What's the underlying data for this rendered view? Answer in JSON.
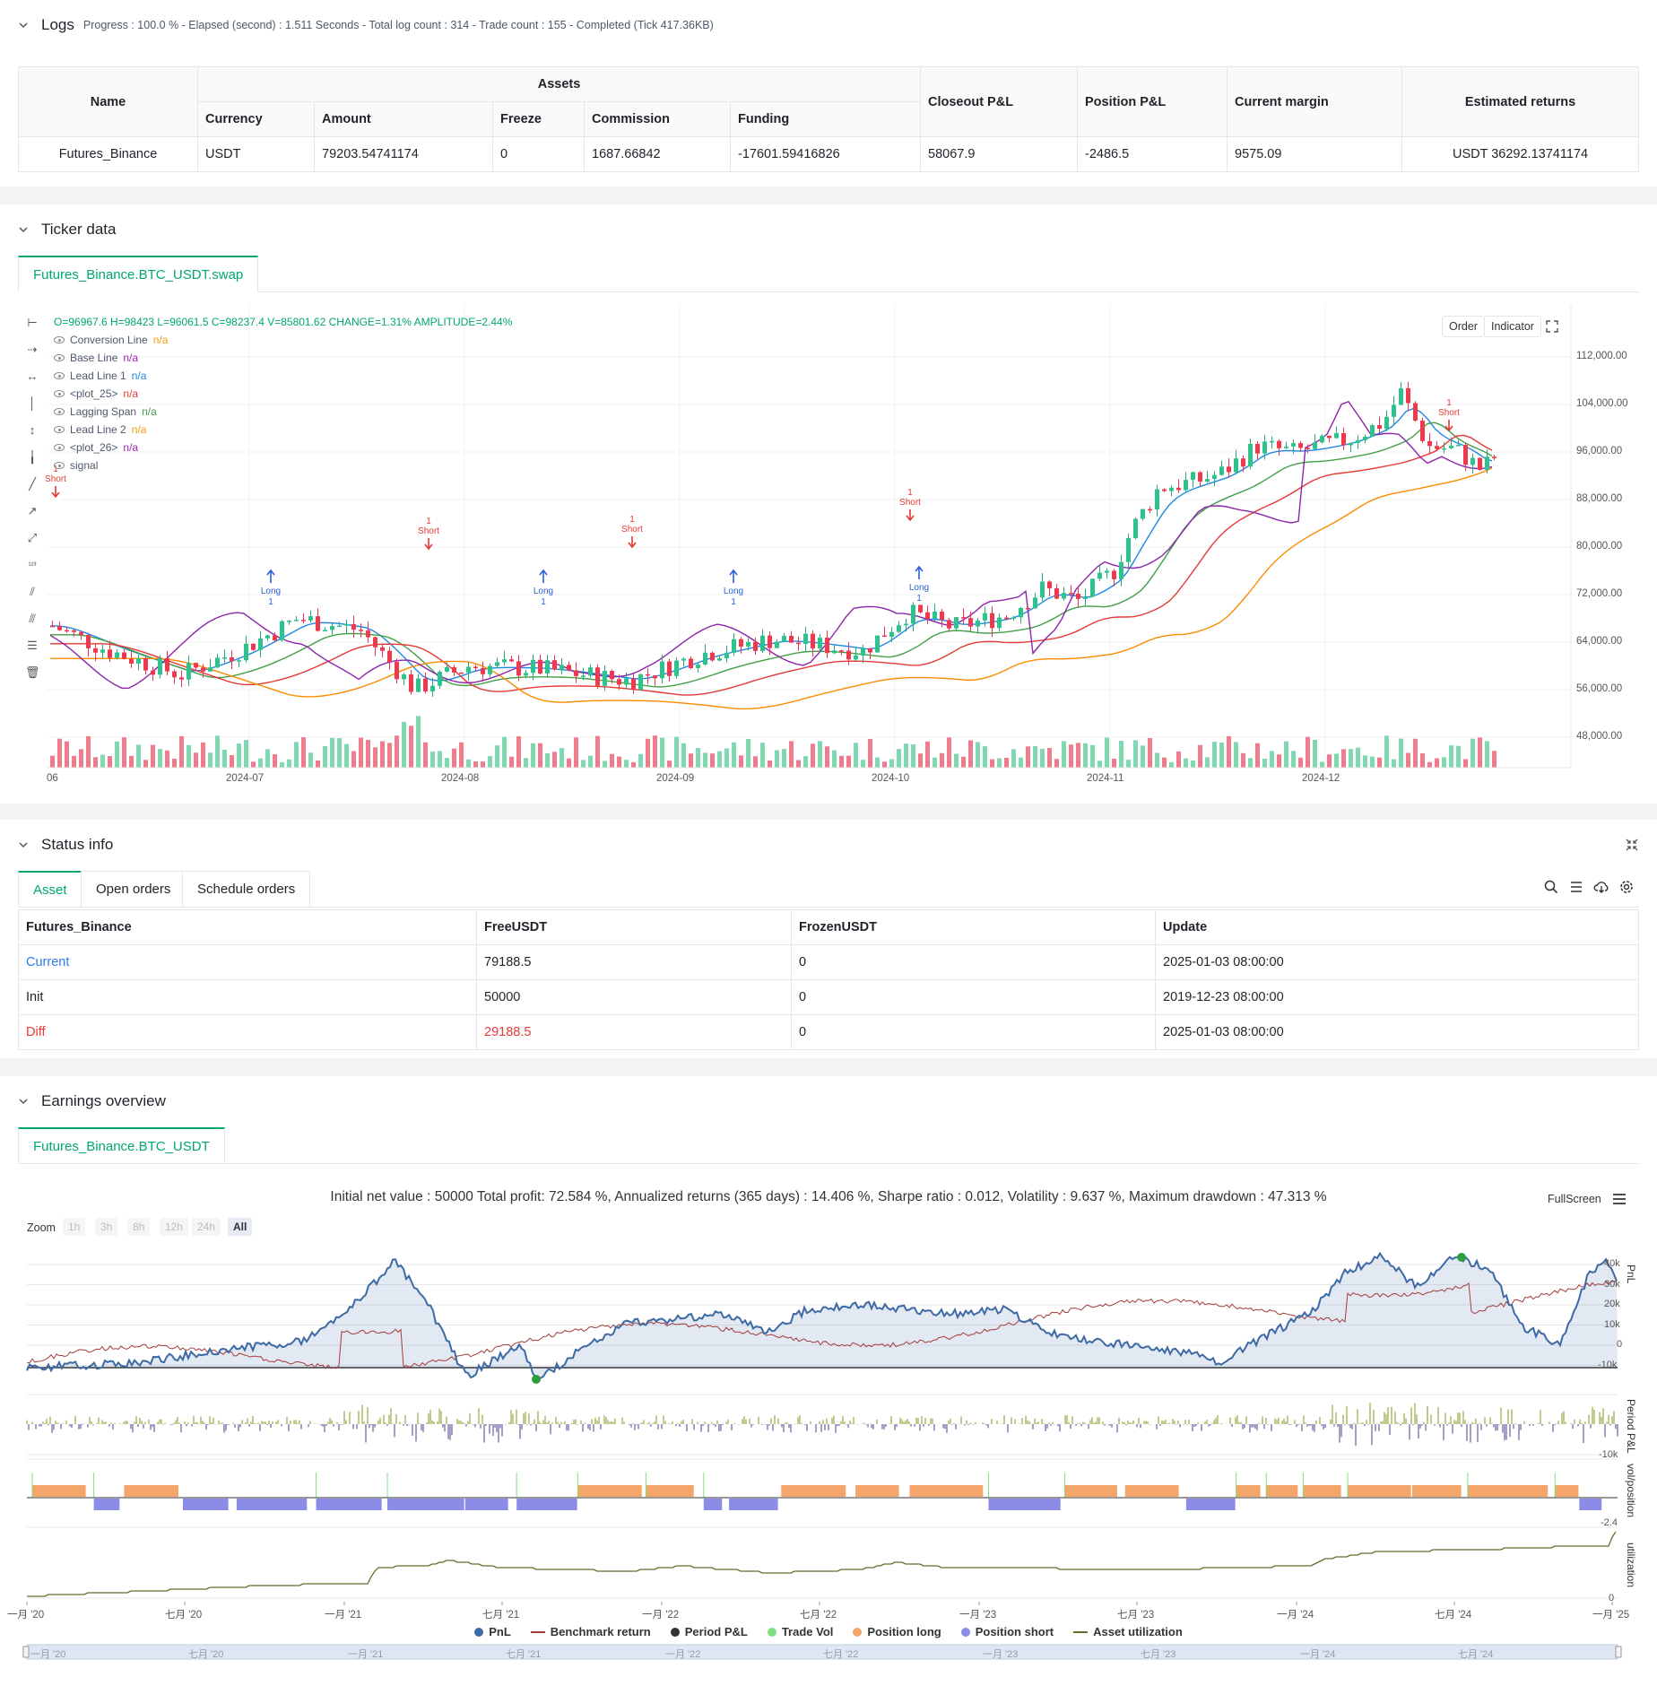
{
  "logs": {
    "title": "Logs",
    "info": "Progress : 100.0 % - Elapsed (second) : 1.511  Seconds - Total log count : 314 - Trade count : 155 - Completed (Tick 417.36KB)"
  },
  "assets_table": {
    "headers": {
      "name": "Name",
      "assets": "Assets",
      "currency": "Currency",
      "amount": "Amount",
      "freeze": "Freeze",
      "commission": "Commission",
      "funding": "Funding",
      "closeout": "Closeout P&L",
      "position": "Position P&L",
      "margin": "Current margin",
      "returns": "Estimated returns"
    },
    "row": {
      "name": "Futures_Binance",
      "currency": "USDT",
      "amount": "79203.54741174",
      "freeze": "0",
      "commission": "1687.66842",
      "funding": "-17601.59416826",
      "closeout": "58067.9",
      "position": "-2486.5",
      "margin": "9575.09",
      "returns": "USDT 36292.13741174"
    }
  },
  "ticker": {
    "title": "Ticker data",
    "tab": "Futures_Binance.BTC_USDT.swap",
    "ohlc": "O=96967.6 H=98423 L=96061.5 C=98237.4 V=85801.62 CHANGE=1.31% AMPLITUDE=2.44%",
    "legend": [
      {
        "name": "Conversion Line",
        "value": "n/a",
        "color": "#f29d0a"
      },
      {
        "name": "Base Line",
        "value": "n/a",
        "color": "#9c27b0"
      },
      {
        "name": "Lead Line 1",
        "value": "n/a",
        "color": "#1e88e5"
      },
      {
        "name": "<plot_25>",
        "value": "n/a",
        "color": "#e53935"
      },
      {
        "name": "Lagging Span",
        "value": "n/a",
        "color": "#43a047"
      },
      {
        "name": "Lead Line 2",
        "value": "n/a",
        "color": "#f29d0a"
      },
      {
        "name": "<plot_26>",
        "value": "n/a",
        "color": "#9c27b0"
      },
      {
        "name": "signal",
        "value": "",
        "color": "#999"
      }
    ],
    "buttons": {
      "order": "Order",
      "indicator": "Indicator"
    },
    "y_ticks": [
      "112,000.00",
      "104,000.00",
      "96,000.00",
      "88,000.00",
      "80,000.00",
      "72,000.00",
      "64,000.00",
      "56,000.00",
      "48,000.00"
    ],
    "x_ticks": [
      "06",
      "2024-07",
      "2024-08",
      "2024-09",
      "2024-10",
      "2024-11",
      "2024-12"
    ],
    "markers": [
      {
        "type": "Short",
        "count": "1"
      },
      {
        "type": "Short",
        "count": "1"
      },
      {
        "type": "Short",
        "count": "1"
      },
      {
        "type": "Short",
        "count": "1"
      },
      {
        "type": "Short",
        "count": "1"
      },
      {
        "type": "Long",
        "count": "1"
      },
      {
        "type": "Long",
        "count": "1"
      },
      {
        "type": "Long",
        "count": "1"
      },
      {
        "type": "Long",
        "count": "1"
      }
    ]
  },
  "status": {
    "title": "Status info",
    "tabs": [
      "Asset",
      "Open orders",
      "Schedule orders"
    ],
    "headers": [
      "Futures_Binance",
      "FreeUSDT",
      "FrozenUSDT",
      "Update"
    ],
    "rows": [
      {
        "label": "Current",
        "free": "79188.5",
        "frozen": "0",
        "update": "2025-01-03 08:00:00"
      },
      {
        "label": "Init",
        "free": "50000",
        "frozen": "0",
        "update": "2019-12-23 08:00:00"
      },
      {
        "label": "Diff",
        "free": "29188.5",
        "frozen": "0",
        "update": "2025-01-03 08:00:00"
      }
    ]
  },
  "earnings": {
    "title": "Earnings overview",
    "tab": "Futures_Binance.BTC_USDT",
    "summary": "Initial net value : 50000 Total profit: 72.584 %, Annualized returns (365 days) : 14.406 %, Sharpe ratio : 0.012, Volatility : 9.637 %, Maximum drawdown : 47.313 %",
    "fullscreen": "FullScreen",
    "zoom_label": "Zoom",
    "zoom_options": [
      "1h",
      "3h",
      "8h",
      "12h",
      "24h",
      "All"
    ],
    "pnl_ticks": [
      "40k",
      "30k",
      "20k",
      "10k",
      "0",
      "-10k"
    ],
    "period_ticks": [
      "-10k"
    ],
    "vol_ticks": [
      "-2.4"
    ],
    "util_ticks": [
      "0"
    ],
    "panel_labels": [
      "PnL",
      "Period P&L",
      "vol/position",
      "utilization"
    ],
    "x_ticks": [
      "一月 '20",
      "七月 '20",
      "一月 '21",
      "七月 '21",
      "一月 '22",
      "七月 '22",
      "一月 '23",
      "七月 '23",
      "一月 '24",
      "七月 '24",
      "一月 '25"
    ],
    "nav_ticks": [
      "一月 '20",
      "七月 '20",
      "一月 '21",
      "七月 '21",
      "一月 '22",
      "七月 '22",
      "一月 '23",
      "七月 '23",
      "一月 '24",
      "七月 '24"
    ],
    "legend": [
      {
        "name": "PnL",
        "color": "#3d6aa5",
        "kind": "dot"
      },
      {
        "name": "Benchmark return",
        "color": "#a33b3b",
        "kind": "dash"
      },
      {
        "name": "Period P&L",
        "color": "#333333",
        "kind": "dot"
      },
      {
        "name": "Trade Vol",
        "color": "#7ee07e",
        "kind": "dot"
      },
      {
        "name": "Position long",
        "color": "#f4a66a",
        "kind": "dot"
      },
      {
        "name": "Position short",
        "color": "#8b8be8",
        "kind": "dot"
      },
      {
        "name": "Asset utilization",
        "color": "#6b6b2b",
        "kind": "dash"
      }
    ]
  }
}
